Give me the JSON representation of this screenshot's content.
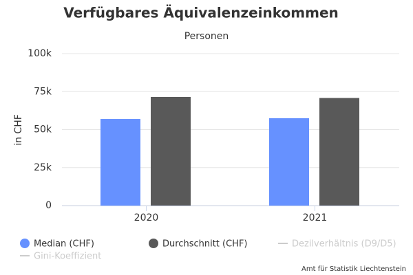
{
  "chart_data": {
    "type": "bar",
    "title": "Verfügbares Äquivalenzeinkommen",
    "subtitle": "Personen",
    "y_label": "in CHF",
    "categories": [
      "2020",
      "2021"
    ],
    "series": [
      {
        "name": "Median (CHF)",
        "color": "#6691ff",
        "values": [
          57000,
          57500
        ]
      },
      {
        "name": "Durchschnitt (CHF)",
        "color": "#595959",
        "values": [
          71500,
          70800
        ]
      }
    ],
    "legend_hidden": [
      "Dezilverhältnis (D9/D5)",
      "Gini-Koeffizient"
    ],
    "hidden_color": "#cccccc",
    "ylim": [
      0,
      100000
    ],
    "yticks": [
      0,
      {
        "value": 25000,
        "label": "25k"
      },
      {
        "value": 50000,
        "label": "50k"
      },
      {
        "value": 75000,
        "label": "75k"
      },
      {
        "value": 100000,
        "label": "100k"
      }
    ],
    "grid": true,
    "credit": "Amt für Statistik Liechtenstein"
  }
}
